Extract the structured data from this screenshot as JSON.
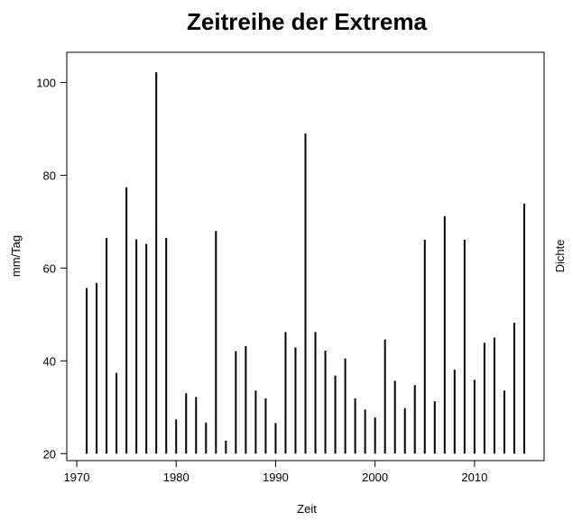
{
  "chart_data": {
    "type": "bar",
    "title": "Zeitreihe der Extrema",
    "xlabel": "Zeit",
    "ylabel": "mm/Tag",
    "y2label": "Dichte",
    "xlim": [
      1969,
      2017
    ],
    "ylim": [
      18.5,
      106.5
    ],
    "xticks": [
      "1970",
      "1980",
      "1990",
      "2000",
      "2010"
    ],
    "yticks": [
      "20",
      "40",
      "60",
      "80",
      "100"
    ],
    "grid": false,
    "legend": "none",
    "bar_color": "#000000",
    "baseline": 20,
    "x": [
      1971,
      1972,
      1973,
      1974,
      1975,
      1976,
      1977,
      1978,
      1979,
      1980,
      1981,
      1982,
      1983,
      1984,
      1985,
      1986,
      1987,
      1988,
      1989,
      1990,
      1991,
      1992,
      1993,
      1994,
      1995,
      1996,
      1997,
      1998,
      1999,
      2000,
      2001,
      2002,
      2003,
      2004,
      2005,
      2006,
      2007,
      2008,
      2009,
      2010,
      2011,
      2012,
      2013,
      2014,
      2015
    ],
    "values": [
      55.7,
      56.8,
      66.5,
      37.4,
      77.4,
      66.2,
      65.2,
      102.2,
      66.5,
      27.4,
      33.0,
      32.2,
      26.7,
      68.0,
      22.8,
      42.1,
      43.2,
      33.6,
      31.9,
      26.6,
      46.2,
      42.9,
      89.0,
      46.2,
      42.2,
      36.8,
      40.5,
      31.9,
      29.5,
      27.8,
      44.6,
      35.7,
      29.8,
      34.8,
      66.1,
      31.3,
      71.2,
      38.1,
      66.1,
      35.9,
      43.9,
      45.0,
      33.6,
      48.2,
      73.9
    ]
  }
}
